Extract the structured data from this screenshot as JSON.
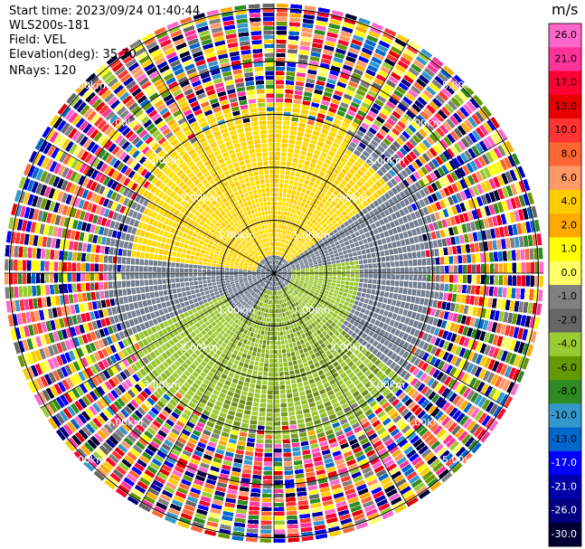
{
  "header": {
    "start_time": "Start time: 2023/09/24 01:40:44",
    "instrument": "WLS200s-181",
    "field": "Field: VEL",
    "elevation": "Elevation(deg): 35.30",
    "nrays": "NRays: 120"
  },
  "colorbar": {
    "unit": "m/s",
    "ticks": [
      "26.0",
      "21.0",
      "17.0",
      "13.0",
      "10.0",
      "8.0",
      "6.0",
      "4.0",
      "2.0",
      "1.0",
      "0.0",
      "-1.0",
      "-2.0",
      "-4.0",
      "-6.0",
      "-8.0",
      "-10.0",
      "-13.0",
      "-17.0",
      "-21.0",
      "-26.0",
      "-30.0"
    ],
    "colors": [
      "#ff66cc",
      "#ff3399",
      "#ff0033",
      "#e60000",
      "#ff3333",
      "#ff6633",
      "#ff9966",
      "#ffcc00",
      "#ffaa00",
      "#ffff00",
      "#ffff66",
      "#808080",
      "#666666",
      "#99cc33",
      "#669900",
      "#2e8b22",
      "#3399cc",
      "#0066cc",
      "#0000ff",
      "#0000aa",
      "#000080",
      "#000033"
    ]
  },
  "chart_data": {
    "type": "ppi",
    "field": "VEL",
    "units": "m/s",
    "nrays": 120,
    "elevation_deg": 35.3,
    "range_ring_labels": [
      "1.00km",
      "2.00km",
      "3.00km",
      "4.00km",
      "5.00km"
    ],
    "range_rings_km": [
      1,
      2,
      3,
      4,
      5
    ],
    "max_range_km": 5.1,
    "approx_clean_data_range_km": 3.3,
    "velocity_pattern": {
      "north_west_sector": "positive ~2-4 m/s (yellow)",
      "east_and_southwest_bands": "near zero (gray)",
      "south_sector": "negative ~-2 to -4 m/s (green)",
      "outer_ring": "noisy / random values beyond ~3.3 km"
    }
  }
}
